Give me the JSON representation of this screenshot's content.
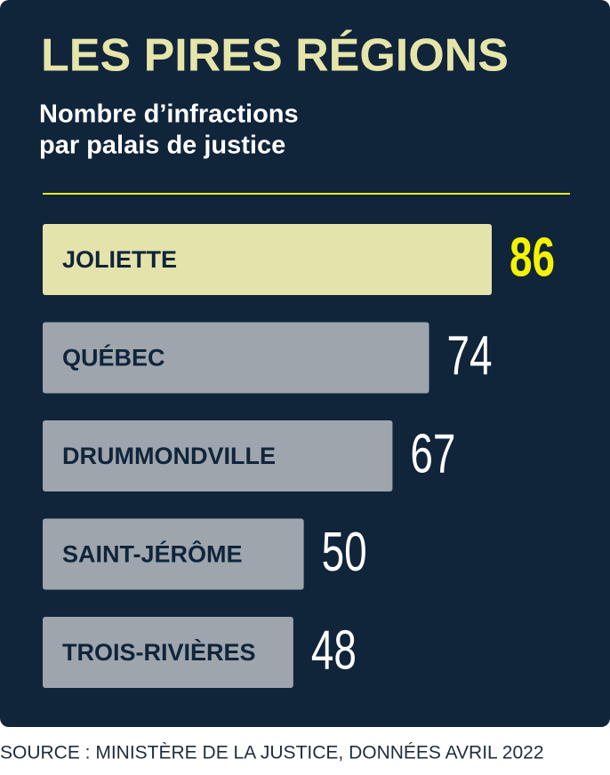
{
  "chart_data": {
    "type": "hbar",
    "title": "LES PIRES RÉGIONS",
    "subtitle": [
      "Nombre d’infractions",
      "par palais de justice"
    ],
    "categories": [
      "JOLIETTE",
      "QUÉBEC",
      "DRUMMONDVILLE",
      "SAINT-JÉRÔME",
      "TROIS-RIVIÈRES"
    ],
    "values": [
      86,
      74,
      67,
      50,
      48
    ],
    "colors": [
      "#e4e3ab",
      "#9ea5ad",
      "#9ea5ad",
      "#9ea5ad",
      "#9ea5ad"
    ],
    "label_colors": [
      "#f3f300",
      "#ffffff",
      "#ffffff",
      "#ffffff",
      "#ffffff"
    ],
    "source": "SOURCE : MINISTÈRE DE LA JUSTICE, DONNÉES AVRIL 2022"
  }
}
